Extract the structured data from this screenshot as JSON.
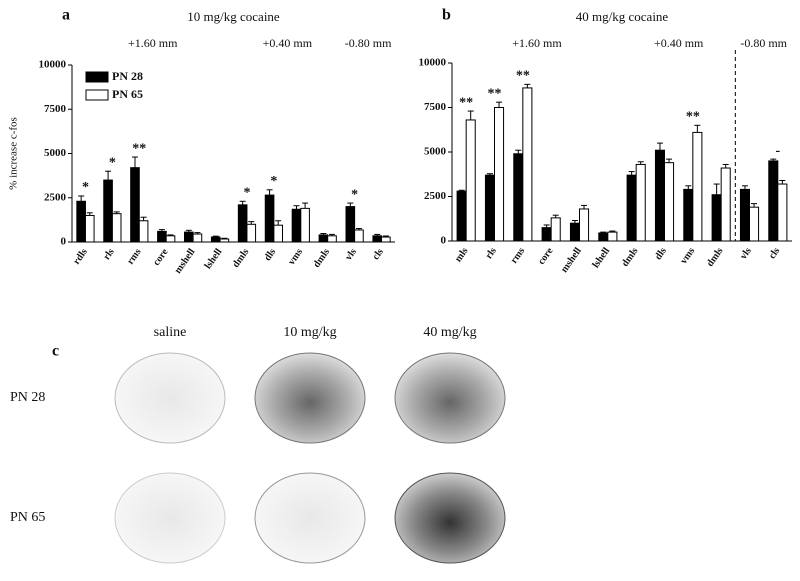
{
  "chart_data": [
    {
      "type": "bar",
      "panel": "a",
      "title": "10 mg/kg cocaine",
      "sections": [
        "+1.60 mm",
        "+0.40 mm",
        "-0.80 mm"
      ],
      "ylabel": "% increase c-fos",
      "categories": [
        "rdls",
        "rls",
        "rms",
        "core",
        "mshell",
        "lshell",
        "dmls",
        "dls",
        "vms",
        "dmls",
        "vls",
        "cls"
      ],
      "series": [
        {
          "name": "PN 28",
          "color": "#000000",
          "values": [
            2300,
            3500,
            4200,
            600,
            560,
            280,
            2100,
            2650,
            1850,
            400,
            2000,
            350
          ],
          "errors": [
            300,
            500,
            600,
            100,
            100,
            50,
            200,
            300,
            200,
            80,
            200,
            80
          ]
        },
        {
          "name": "PN 65",
          "color": "#ffffff",
          "values": [
            1500,
            1600,
            1200,
            350,
            450,
            170,
            1000,
            950,
            1900,
            350,
            680,
            280
          ],
          "errors": [
            150,
            100,
            200,
            50,
            80,
            40,
            150,
            250,
            300,
            80,
            80,
            60
          ]
        }
      ],
      "annotations": [
        "*",
        "*",
        "**",
        null,
        null,
        null,
        "*",
        "*",
        null,
        null,
        "*",
        null
      ],
      "ylim": [
        0,
        10000
      ],
      "yticks": [
        0,
        2500,
        5000,
        7500,
        10000
      ],
      "legend": "top-left"
    },
    {
      "type": "bar",
      "panel": "b",
      "title": "40 mg/kg cocaine",
      "sections": [
        "+1.60 mm",
        "+0.40 mm",
        "-0.80 mm"
      ],
      "categories": [
        "mls",
        "rls",
        "rms",
        "core",
        "mshell",
        "lshell",
        "dmls",
        "dls",
        "vms",
        "dmls",
        "vls",
        "cls"
      ],
      "series": [
        {
          "name": "PN 28",
          "color": "#000000",
          "values": [
            2800,
            3700,
            4900,
            750,
            1000,
            450,
            3700,
            5100,
            2900,
            2600,
            2900,
            4500
          ],
          "errors": [
            50,
            80,
            200,
            150,
            150,
            50,
            200,
            400,
            200,
            600,
            200,
            100
          ]
        },
        {
          "name": "PN 65",
          "color": "#ffffff",
          "values": [
            6800,
            7500,
            8600,
            1300,
            1800,
            500,
            4300,
            4400,
            6100,
            4100,
            1900,
            3200
          ],
          "errors": [
            500,
            300,
            200,
            150,
            200,
            60,
            150,
            200,
            400,
            200,
            200,
            200
          ]
        }
      ],
      "annotations": [
        "**",
        "**",
        "**",
        null,
        null,
        null,
        null,
        null,
        "**",
        null,
        null,
        "-"
      ],
      "ylim": [
        0,
        10000
      ],
      "yticks": [
        0,
        2500,
        5000,
        7500,
        10000
      ]
    }
  ],
  "panel_c": {
    "label": "c",
    "columns": [
      "saline",
      "10 mg/kg",
      "40 mg/kg"
    ],
    "rows": [
      "PN 28",
      "PN 65"
    ]
  }
}
